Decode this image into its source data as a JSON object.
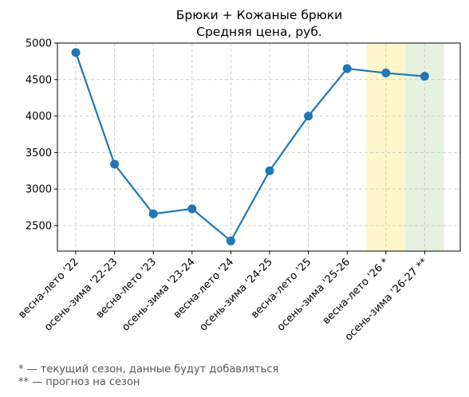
{
  "chart_data": {
    "type": "line",
    "title": "Брюки + Кожаные брюки",
    "subtitle": "Средняя цена, руб.",
    "xlabel": "",
    "ylabel": "",
    "categories": [
      "весна-лето '22",
      "осень-зима '22-23",
      "весна-лето '23",
      "осень-зима '23-24",
      "весна-лето '24",
      "осень-зима '24-25",
      "весна-лето '25",
      "осень-зима '25-26",
      "весна-лето '26 *",
      "осень-зима '26-27 **"
    ],
    "series": [
      {
        "values": [
          4870,
          3340,
          2660,
          2730,
          2290,
          3250,
          4000,
          4650,
          4590,
          4545
        ]
      }
    ],
    "ylim": [
      2150,
      5000
    ],
    "yticks": [
      2500,
      3000,
      3500,
      4000,
      4500,
      5000
    ],
    "grid": true,
    "line_color": "#1f77b4",
    "highlights": [
      {
        "category": "весна-лето '26 *",
        "color": "#fff7cc"
      },
      {
        "category": "осень-зима '26-27 **",
        "color": "#e6f2e0"
      }
    ]
  },
  "footnotes": [
    "* — текущий сезон, данные будут добавляться",
    "** — прогноз на сезон"
  ]
}
